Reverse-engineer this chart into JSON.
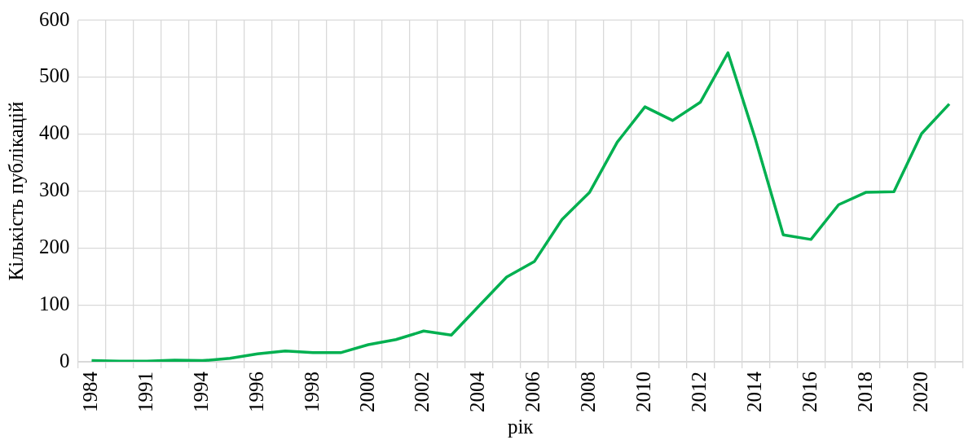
{
  "chart_data": {
    "type": "line",
    "xlabel": "рік",
    "ylabel": "Кількість публікацій",
    "categories": [
      "1984",
      null,
      "1991",
      null,
      "1994",
      null,
      "1996",
      null,
      "1998",
      null,
      "2000",
      null,
      "2002",
      null,
      "2004",
      null,
      "2006",
      null,
      "2008",
      null,
      "2010",
      null,
      "2012",
      null,
      "2014",
      null,
      "2016",
      null,
      "2018",
      null,
      "2020",
      null
    ],
    "series": [
      {
        "color": "#00b050",
        "values": [
          2,
          1,
          1,
          3,
          2,
          6,
          14,
          19,
          16,
          16,
          30,
          39,
          54,
          47,
          98,
          149,
          176,
          250,
          298,
          386,
          448,
          424,
          456,
          543,
          390,
          223,
          215,
          276,
          298,
          299,
          401,
          453
        ]
      }
    ],
    "ylim": [
      0,
      600
    ],
    "yticks": [
      0,
      100,
      200,
      300,
      400,
      500,
      600
    ],
    "grid": true,
    "legend": false,
    "marker": "none",
    "line_style": "solid"
  }
}
